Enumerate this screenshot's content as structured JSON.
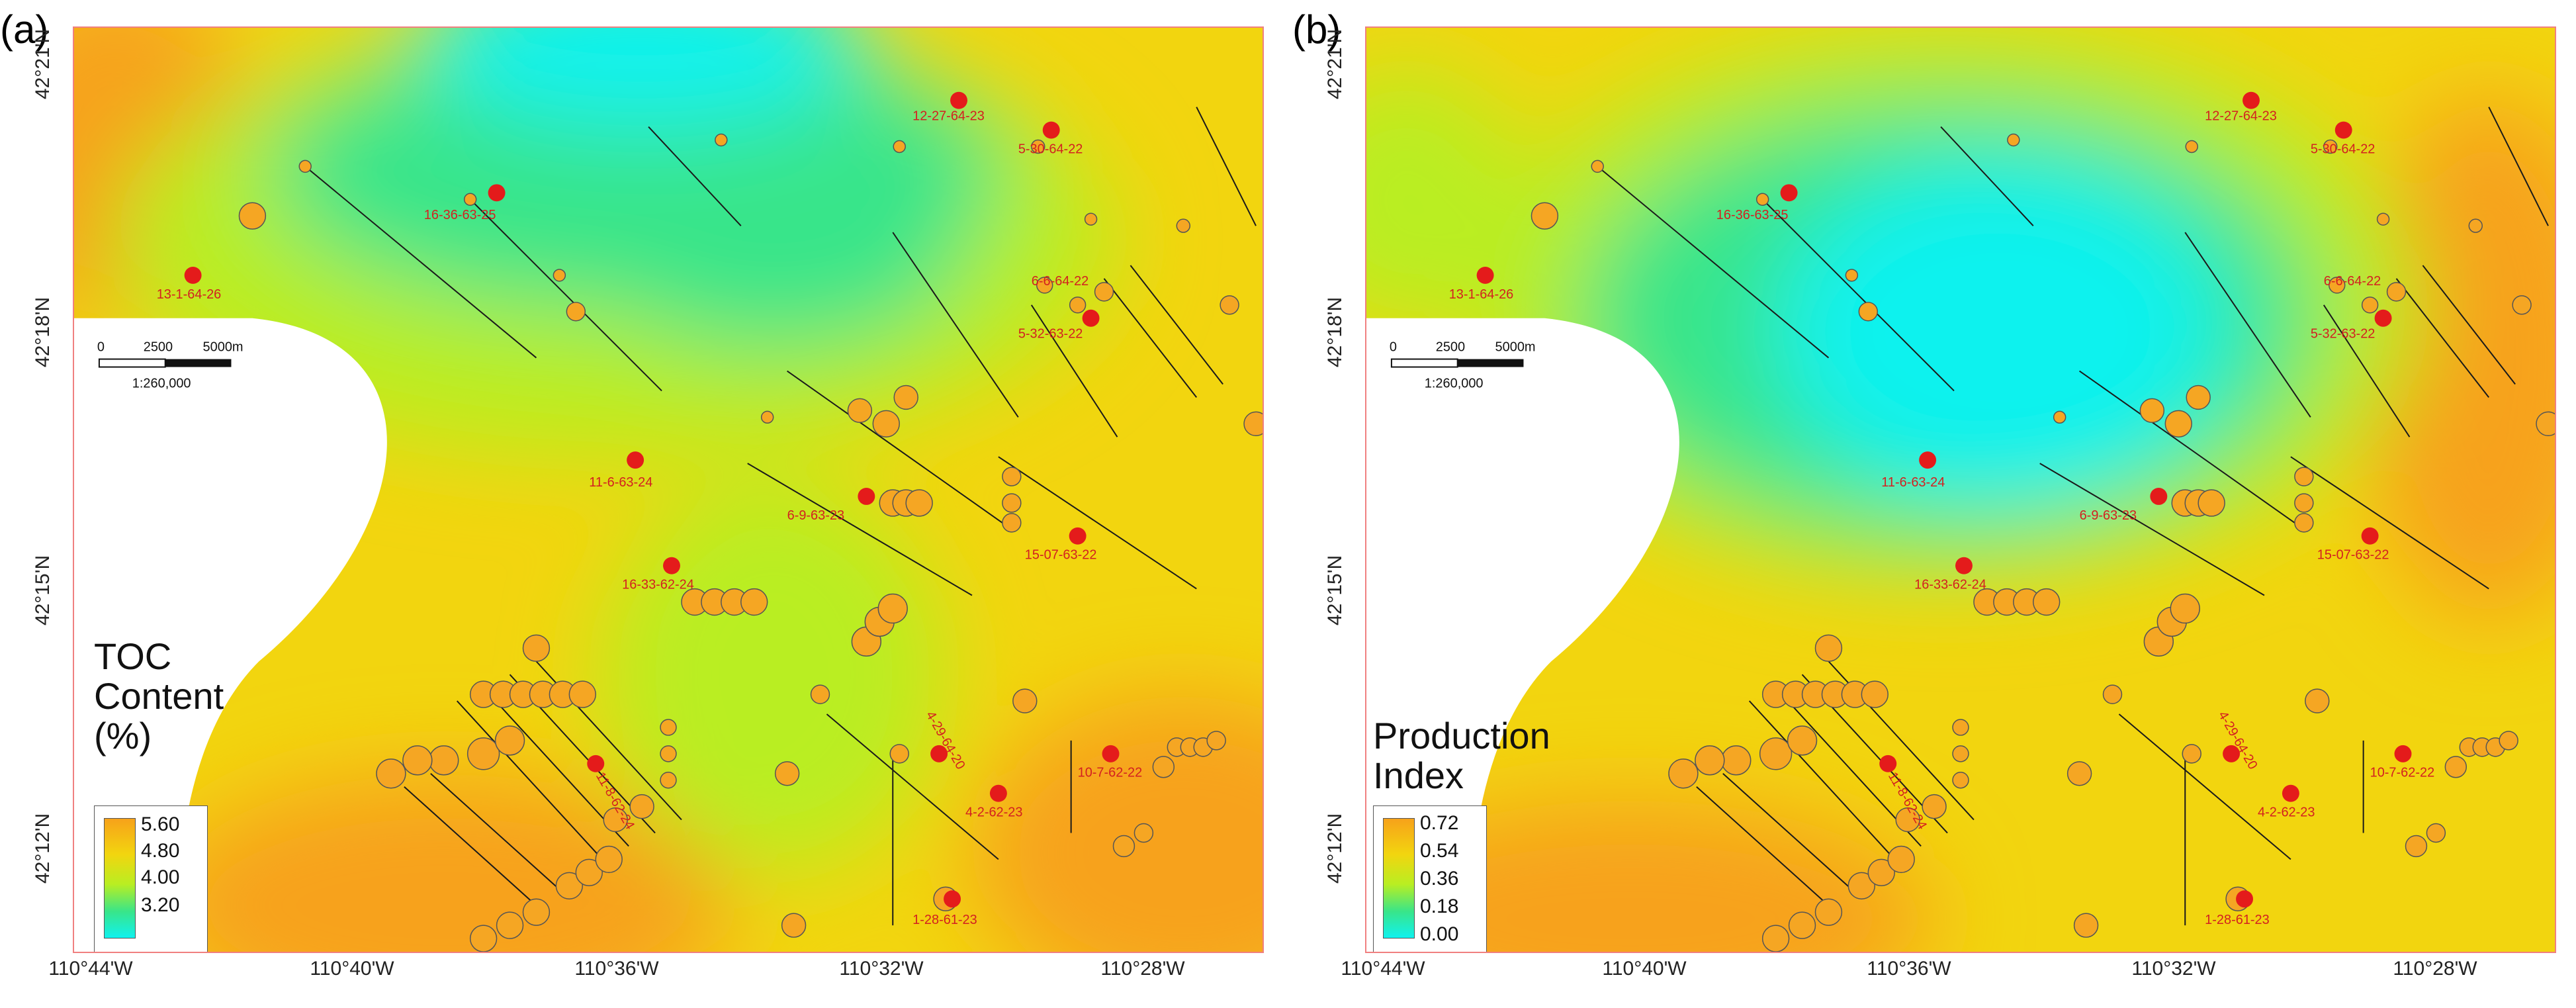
{
  "panels": [
    {
      "letter": "(a)",
      "legend_title": [
        "TOC",
        "Content",
        "(%)"
      ],
      "legend_ticks": [
        "5.60",
        "4.80",
        "4.00",
        "3.20"
      ],
      "colors": [
        "#f7a21a",
        "#f2d50f",
        "#b9ee22",
        "#38e58a",
        "#10f2ee"
      ]
    },
    {
      "letter": "(b)",
      "legend_title": [
        "Production",
        "Index"
      ],
      "legend_ticks": [
        "0.72",
        "0.54",
        "0.36",
        "0.18",
        "0.00"
      ],
      "colors": [
        "#f7a21a",
        "#f2d50f",
        "#b9ee22",
        "#38e58a",
        "#10f2ee"
      ]
    }
  ],
  "axes": {
    "lat_labels": [
      "42°21'N",
      "42°18'N",
      "42°15'N",
      "42°12'N"
    ],
    "lon_labels": [
      "110°44'W",
      "110°40'W",
      "110°36'W",
      "110°32'W",
      "110°28'W"
    ]
  },
  "scalebar": {
    "ticks": [
      "0",
      "2500",
      "5000m"
    ],
    "ratio": "1:260,000"
  },
  "wells": [
    "12-27-64-23",
    "5-30-64-22",
    "16-36-63-25",
    "13-1-64-26",
    "6-6-64-22",
    "5-32-63-22",
    "11-6-63-24",
    "6-9-63-23",
    "15-07-63-22",
    "16-33-62-24",
    "4-29-64-20",
    "4-2-62-23",
    "10-7-62-22",
    "1-28-61-23",
    "11-8-62-24"
  ]
}
